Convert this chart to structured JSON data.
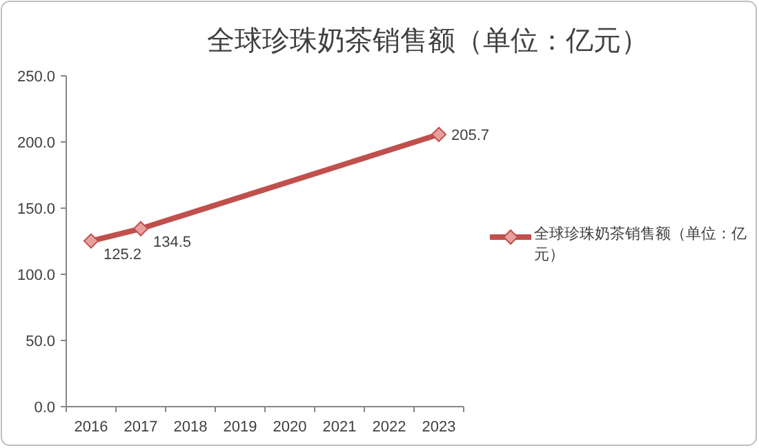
{
  "chart_data": {
    "type": "line",
    "title": "全球珍珠奶茶销售额（单位：亿元）",
    "categories": [
      "2016",
      "2017",
      "2018",
      "2019",
      "2020",
      "2021",
      "2022",
      "2023"
    ],
    "series": [
      {
        "name": "全球珍珠奶茶销售额（单位：亿元）",
        "color": "#c0504d",
        "values": [
          125.2,
          134.5,
          null,
          null,
          null,
          null,
          null,
          205.7
        ]
      }
    ],
    "ylim": [
      0,
      250
    ],
    "yticks": [
      {
        "value": 0,
        "label": "0.0"
      },
      {
        "value": 50,
        "label": "50.0"
      },
      {
        "value": 100,
        "label": "100.0"
      },
      {
        "value": 150,
        "label": "150.0"
      },
      {
        "value": 200,
        "label": "200.0"
      },
      {
        "value": 250,
        "label": "250.0"
      }
    ],
    "data_labels": true,
    "marker": "diamond",
    "legend": "right",
    "grid": false
  }
}
